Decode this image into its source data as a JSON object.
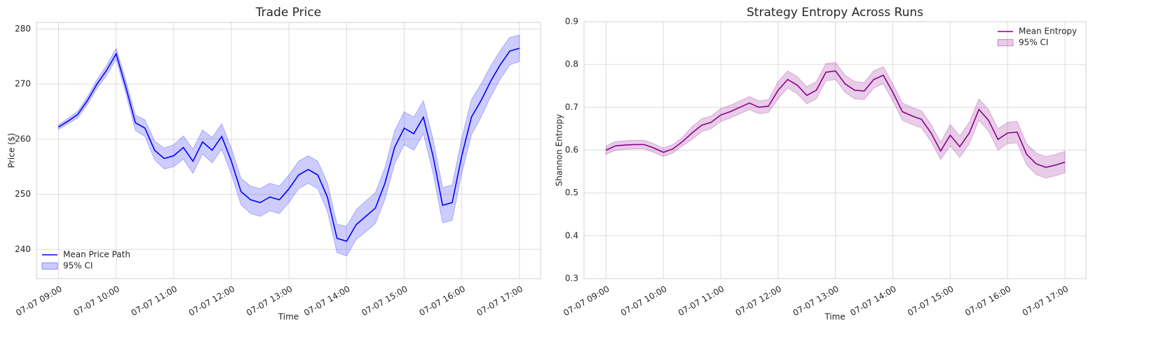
{
  "chart_data": [
    {
      "type": "line",
      "title": "Trade Price",
      "xlabel": "Time",
      "ylabel": "Price ($)",
      "x": [
        "07-07 09:00",
        "07-07 09:10",
        "07-07 09:20",
        "07-07 09:30",
        "07-07 09:40",
        "07-07 09:50",
        "07-07 10:00",
        "07-07 10:10",
        "07-07 10:20",
        "07-07 10:30",
        "07-07 10:40",
        "07-07 10:50",
        "07-07 11:00",
        "07-07 11:10",
        "07-07 11:20",
        "07-07 11:30",
        "07-07 11:40",
        "07-07 11:50",
        "07-07 12:00",
        "07-07 12:10",
        "07-07 12:20",
        "07-07 12:30",
        "07-07 12:40",
        "07-07 12:50",
        "07-07 13:00",
        "07-07 13:10",
        "07-07 13:20",
        "07-07 13:30",
        "07-07 13:40",
        "07-07 13:50",
        "07-07 14:00",
        "07-07 14:10",
        "07-07 14:20",
        "07-07 14:30",
        "07-07 14:40",
        "07-07 14:50",
        "07-07 15:00",
        "07-07 15:10",
        "07-07 15:20",
        "07-07 15:30",
        "07-07 15:40",
        "07-07 15:50",
        "07-07 16:00",
        "07-07 16:10",
        "07-07 16:20",
        "07-07 16:30",
        "07-07 16:40",
        "07-07 16:50",
        "07-07 17:00"
      ],
      "series": [
        {
          "name": "Mean Price Path",
          "color": "#0000ff",
          "values": [
            262.2,
            263.3,
            264.5,
            267,
            270,
            272.5,
            275.5,
            269.5,
            263,
            262,
            258,
            256.5,
            257,
            258.5,
            256,
            259.5,
            258,
            260.5,
            256,
            250.5,
            249,
            248.5,
            249.5,
            249,
            251,
            253.5,
            254.5,
            253.5,
            249.5,
            242,
            241.5,
            244.5,
            246,
            247.5,
            252,
            258.5,
            262,
            261,
            264,
            257,
            248,
            248.5,
            257,
            264,
            267,
            270.5,
            273.5,
            276,
            276.5
          ]
        }
      ],
      "ci": {
        "name": "95% CI",
        "color": "#0000ff",
        "lower": [
          261.8,
          262.8,
          263.9,
          266.3,
          269.2,
          271.6,
          274.5,
          268.3,
          261.6,
          260.5,
          256.3,
          254.6,
          255,
          256.4,
          253.8,
          257.3,
          255.7,
          258.2,
          253.6,
          248.1,
          246.5,
          246,
          247,
          246.5,
          248.5,
          251,
          252,
          251,
          246.9,
          239.4,
          238.8,
          241.8,
          243.2,
          244.7,
          249.1,
          255.5,
          259,
          258,
          261,
          253.9,
          244.8,
          245.3,
          253.8,
          260.8,
          264,
          267.7,
          270.9,
          273.5,
          274.1
        ],
        "upper": [
          262.6,
          263.8,
          265.1,
          267.7,
          270.8,
          273.4,
          276.5,
          270.7,
          264.4,
          263.5,
          259.7,
          258.4,
          259,
          260.6,
          258.2,
          261.7,
          260.3,
          262.8,
          258.4,
          252.9,
          251.5,
          251,
          252,
          251.5,
          253.5,
          256,
          257,
          256,
          252.1,
          244.6,
          244.2,
          247.2,
          248.8,
          250.3,
          254.9,
          261.5,
          265,
          264,
          267,
          260.1,
          251.2,
          251.7,
          260.2,
          267.2,
          270,
          273.3,
          276.1,
          278.5,
          278.9
        ]
      },
      "xlim": [
        "07-07 08:37",
        "07-07 17:22"
      ],
      "xticks": [
        "07-07 09:00",
        "07-07 10:00",
        "07-07 11:00",
        "07-07 12:00",
        "07-07 13:00",
        "07-07 14:00",
        "07-07 15:00",
        "07-07 16:00",
        "07-07 17:00"
      ],
      "ylim": [
        234.7,
        281.2
      ],
      "yticks": [
        240,
        250,
        260,
        270,
        280
      ],
      "grid": true,
      "legend": "lower left"
    },
    {
      "type": "line",
      "title": "Strategy Entropy Across Runs",
      "xlabel": "Time",
      "ylabel": "Shannon Entropy",
      "x": [
        "07-07 09:00",
        "07-07 09:10",
        "07-07 09:20",
        "07-07 09:30",
        "07-07 09:40",
        "07-07 09:50",
        "07-07 10:00",
        "07-07 10:10",
        "07-07 10:20",
        "07-07 10:30",
        "07-07 10:40",
        "07-07 10:50",
        "07-07 11:00",
        "07-07 11:10",
        "07-07 11:20",
        "07-07 11:30",
        "07-07 11:40",
        "07-07 11:50",
        "07-07 12:00",
        "07-07 12:10",
        "07-07 12:20",
        "07-07 12:30",
        "07-07 12:40",
        "07-07 12:50",
        "07-07 13:00",
        "07-07 13:10",
        "07-07 13:20",
        "07-07 13:30",
        "07-07 13:40",
        "07-07 13:50",
        "07-07 14:00",
        "07-07 14:10",
        "07-07 14:20",
        "07-07 14:30",
        "07-07 14:40",
        "07-07 14:50",
        "07-07 15:00",
        "07-07 15:10",
        "07-07 15:20",
        "07-07 15:30",
        "07-07 15:40",
        "07-07 15:50",
        "07-07 16:00",
        "07-07 16:10",
        "07-07 16:20",
        "07-07 16:30",
        "07-07 16:40",
        "07-07 16:50",
        "07-07 17:00"
      ],
      "series": [
        {
          "name": "Mean Entropy",
          "color": "#8b008b",
          "values": [
            0.6,
            0.61,
            0.612,
            0.613,
            0.613,
            0.605,
            0.595,
            0.603,
            0.62,
            0.64,
            0.658,
            0.665,
            0.682,
            0.69,
            0.7,
            0.71,
            0.7,
            0.703,
            0.74,
            0.765,
            0.752,
            0.728,
            0.74,
            0.782,
            0.785,
            0.755,
            0.74,
            0.738,
            0.765,
            0.775,
            0.735,
            0.69,
            0.68,
            0.672,
            0.64,
            0.598,
            0.635,
            0.608,
            0.64,
            0.695,
            0.67,
            0.625,
            0.64,
            0.642,
            0.59,
            0.568,
            0.56,
            0.565,
            0.572
          ]
        }
      ],
      "ci": {
        "name": "95% CI",
        "color": "#8b008b",
        "lower": [
          0.59,
          0.6,
          0.602,
          0.603,
          0.603,
          0.595,
          0.585,
          0.593,
          0.61,
          0.625,
          0.643,
          0.65,
          0.667,
          0.675,
          0.685,
          0.695,
          0.685,
          0.688,
          0.72,
          0.745,
          0.732,
          0.708,
          0.72,
          0.762,
          0.765,
          0.735,
          0.72,
          0.718,
          0.745,
          0.755,
          0.715,
          0.67,
          0.66,
          0.652,
          0.62,
          0.578,
          0.61,
          0.583,
          0.615,
          0.67,
          0.645,
          0.6,
          0.615,
          0.617,
          0.565,
          0.543,
          0.535,
          0.54,
          0.547
        ],
        "upper": [
          0.61,
          0.62,
          0.622,
          0.623,
          0.623,
          0.615,
          0.605,
          0.613,
          0.63,
          0.655,
          0.673,
          0.68,
          0.697,
          0.705,
          0.715,
          0.725,
          0.715,
          0.718,
          0.76,
          0.785,
          0.772,
          0.748,
          0.76,
          0.802,
          0.805,
          0.775,
          0.76,
          0.758,
          0.785,
          0.795,
          0.755,
          0.71,
          0.7,
          0.692,
          0.66,
          0.618,
          0.66,
          0.633,
          0.665,
          0.72,
          0.695,
          0.65,
          0.665,
          0.667,
          0.615,
          0.593,
          0.585,
          0.59,
          0.597
        ]
      },
      "xlim": [
        "07-07 08:37",
        "07-07 17:22"
      ],
      "xticks": [
        "07-07 09:00",
        "07-07 10:00",
        "07-07 11:00",
        "07-07 12:00",
        "07-07 13:00",
        "07-07 14:00",
        "07-07 15:00",
        "07-07 16:00",
        "07-07 17:00"
      ],
      "ylim": [
        0.3,
        0.9
      ],
      "yticks": [
        0.3,
        0.4,
        0.5,
        0.6,
        0.7,
        0.8,
        0.9
      ],
      "grid": true,
      "legend": "upper right"
    }
  ]
}
